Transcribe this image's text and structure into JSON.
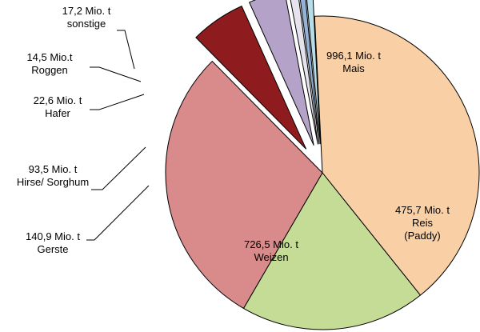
{
  "chart_data": {
    "type": "pie",
    "title": "",
    "unit": "Mio. t",
    "legend": "none (leader-line labels)",
    "series": [
      {
        "name": "Mais",
        "value": 996.1,
        "display_value": "996,1 Mio. t",
        "label_lines": [
          "996,1 Mio. t",
          "Mais"
        ],
        "color": "#f9d0a6",
        "exploded": false
      },
      {
        "name": "Reis (Paddy)",
        "value": 475.7,
        "display_value": "475,7 Mio. t",
        "label_lines": [
          "475,7 Mio. t",
          "Reis",
          "(Paddy)"
        ],
        "color": "#c4dc96",
        "exploded": false
      },
      {
        "name": "Weizen",
        "value": 726.5,
        "display_value": "726,5 Mio. t",
        "label_lines": [
          "726,5 Mio. t",
          "Weizen"
        ],
        "color": "#d98b8b",
        "exploded": false
      },
      {
        "name": "Gerste",
        "value": 140.9,
        "display_value": "140,9 Mio. t",
        "label_lines": [
          "140,9 Mio. t",
          "Gerste"
        ],
        "color": "#8e1b1e",
        "exploded": true
      },
      {
        "name": "Hirse/ Sorghum",
        "value": 93.5,
        "display_value": "93,5 Mio. t",
        "label_lines": [
          "93,5 Mio. t",
          "Hirse/ Sorghum"
        ],
        "color": "#b4a2c8",
        "exploded": true
      },
      {
        "name": "Hafer",
        "value": 22.6,
        "display_value": "22,6 Mio. t",
        "label_lines": [
          "22,6 Mio. t",
          "Hafer"
        ],
        "color": "#e6e2ee",
        "exploded": true
      },
      {
        "name": "Roggen",
        "value": 14.5,
        "display_value": "14,5 Mio.t",
        "label_lines": [
          "14,5 Mio.t",
          "Roggen"
        ],
        "color": "#95b3d7",
        "exploded": true
      },
      {
        "name": "sonstige",
        "value": 17.2,
        "display_value": "17,2 Mio. t",
        "label_lines": [
          "17,2 Mio. t",
          "sonstige"
        ],
        "color": "#b7dde8",
        "exploded": true
      }
    ]
  }
}
